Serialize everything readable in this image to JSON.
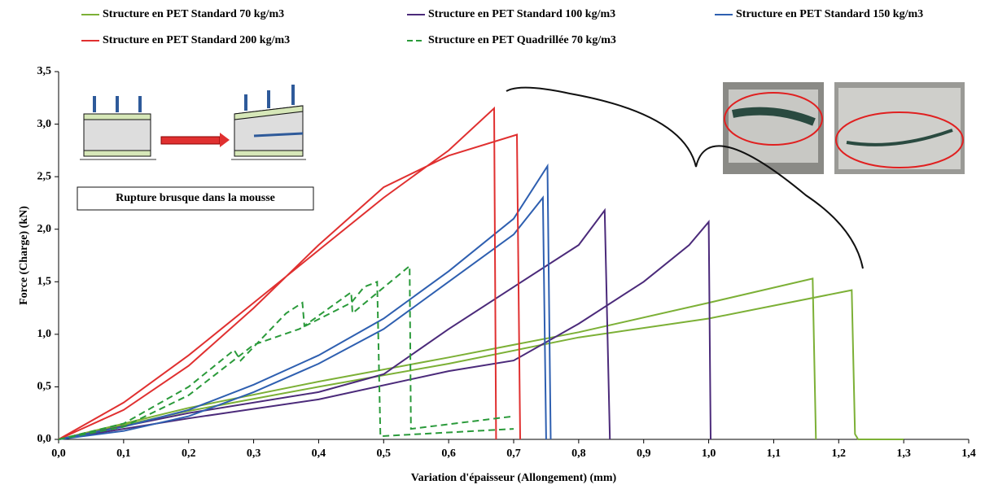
{
  "chart_data": {
    "type": "line",
    "xlabel": "Variation d'épaisseur (Allongement) (mm)",
    "ylabel": "Force (Charge) (kN)",
    "annotations": [
      "Rupture brusque dans la mousse"
    ],
    "xlim": [
      0,
      1.4
    ],
    "xticks": [
      {
        "value": 0,
        "label": "0,0"
      },
      {
        "value": 0.1,
        "label": "0,1"
      },
      {
        "value": 0.2,
        "label": "0,2"
      },
      {
        "value": 0.3,
        "label": "0,3"
      },
      {
        "value": 0.4,
        "label": "0,4"
      },
      {
        "value": 0.5,
        "label": "0,5"
      },
      {
        "value": 0.6,
        "label": "0,6"
      },
      {
        "value": 0.7,
        "label": "0,7"
      },
      {
        "value": 0.8,
        "label": "0,8"
      },
      {
        "value": 0.9,
        "label": "0,9"
      },
      {
        "value": 1,
        "label": "1,0"
      },
      {
        "value": 1.1,
        "label": "1,1"
      },
      {
        "value": 1.2,
        "label": "1,2"
      },
      {
        "value": 1.3,
        "label": "1,3"
      },
      {
        "value": 1.4,
        "label": "1,4"
      }
    ],
    "ylim": [
      0,
      3.5
    ],
    "yticks": [
      {
        "value": 0,
        "label": "0,0"
      },
      {
        "value": 0.5,
        "label": "0,5"
      },
      {
        "value": 1,
        "label": "1,0"
      },
      {
        "value": 1.5,
        "label": "1,5"
      },
      {
        "value": 2,
        "label": "2,0"
      },
      {
        "value": 2.5,
        "label": "2,5"
      },
      {
        "value": 3,
        "label": "3,0"
      },
      {
        "value": 3.5,
        "label": "3,5"
      }
    ],
    "series": [
      {
        "name": "Structure en PET Standard 70 kg/m3",
        "color": "#7cb036",
        "style": "solid",
        "x": [
          0,
          0.2,
          0.4,
          0.6,
          0.8,
          1.0,
          1.16,
          1.165,
          null,
          0,
          0.2,
          0.4,
          0.6,
          0.8,
          1.0,
          1.22,
          1.225,
          1.23,
          1.3
        ],
        "values": [
          0,
          0.3,
          0.55,
          0.78,
          1.02,
          1.3,
          1.53,
          0,
          null,
          0,
          0.27,
          0.5,
          0.72,
          0.97,
          1.15,
          1.42,
          0.05,
          0,
          0
        ]
      },
      {
        "name": "Structure en PET Standard 100 kg/m3",
        "color": "#4b2a7a",
        "style": "solid",
        "x": [
          0,
          0.2,
          0.4,
          0.5,
          0.6,
          0.7,
          0.8,
          0.84,
          0.848,
          null,
          0,
          0.2,
          0.4,
          0.6,
          0.7,
          0.8,
          0.9,
          0.97,
          1.0,
          1.003
        ],
        "values": [
          0,
          0.25,
          0.45,
          0.62,
          1.05,
          1.45,
          1.85,
          2.18,
          0,
          null,
          0,
          0.2,
          0.38,
          0.65,
          0.75,
          1.1,
          1.5,
          1.85,
          2.07,
          0
        ]
      },
      {
        "name": "Structure en PET Standard 150 kg/m3",
        "color": "#2e5fb0",
        "style": "solid",
        "x": [
          0,
          0.1,
          0.2,
          0.3,
          0.4,
          0.5,
          0.6,
          0.7,
          0.752,
          0.757,
          null,
          0,
          0.1,
          0.2,
          0.3,
          0.4,
          0.5,
          0.6,
          0.7,
          0.745,
          0.75
        ],
        "values": [
          0,
          0.12,
          0.28,
          0.52,
          0.8,
          1.15,
          1.6,
          2.1,
          2.6,
          0,
          null,
          0,
          0.08,
          0.22,
          0.45,
          0.72,
          1.05,
          1.5,
          1.95,
          2.3,
          0
        ]
      },
      {
        "name": "Structure en PET Standard 200 kg/m3",
        "color": "#e03030",
        "style": "solid",
        "x": [
          0,
          0.1,
          0.2,
          0.3,
          0.4,
          0.5,
          0.6,
          0.67,
          0.673,
          null,
          0,
          0.1,
          0.2,
          0.3,
          0.4,
          0.5,
          0.6,
          0.705,
          0.71
        ],
        "values": [
          0,
          0.35,
          0.8,
          1.3,
          1.8,
          2.3,
          2.75,
          3.15,
          0,
          null,
          0,
          0.28,
          0.7,
          1.25,
          1.85,
          2.4,
          2.7,
          2.9,
          0
        ]
      },
      {
        "name": "Structure en PET Quadrillée 70 kg/m3",
        "color": "#2a9a3a",
        "style": "dashed",
        "x": [
          0,
          0.1,
          0.2,
          0.27,
          0.28,
          0.35,
          0.375,
          0.378,
          0.45,
          0.452,
          0.54,
          0.542,
          0.7,
          null,
          0,
          0.1,
          0.2,
          0.3,
          0.37,
          0.45,
          0.47,
          0.49,
          0.495,
          0.7
        ],
        "values": [
          0,
          0.15,
          0.5,
          0.85,
          0.75,
          1.2,
          1.3,
          1.08,
          1.4,
          1.2,
          1.65,
          0.1,
          0.22,
          null,
          0,
          0.12,
          0.42,
          0.9,
          1.05,
          1.3,
          1.45,
          1.5,
          0.03,
          0.1
        ]
      }
    ]
  }
}
